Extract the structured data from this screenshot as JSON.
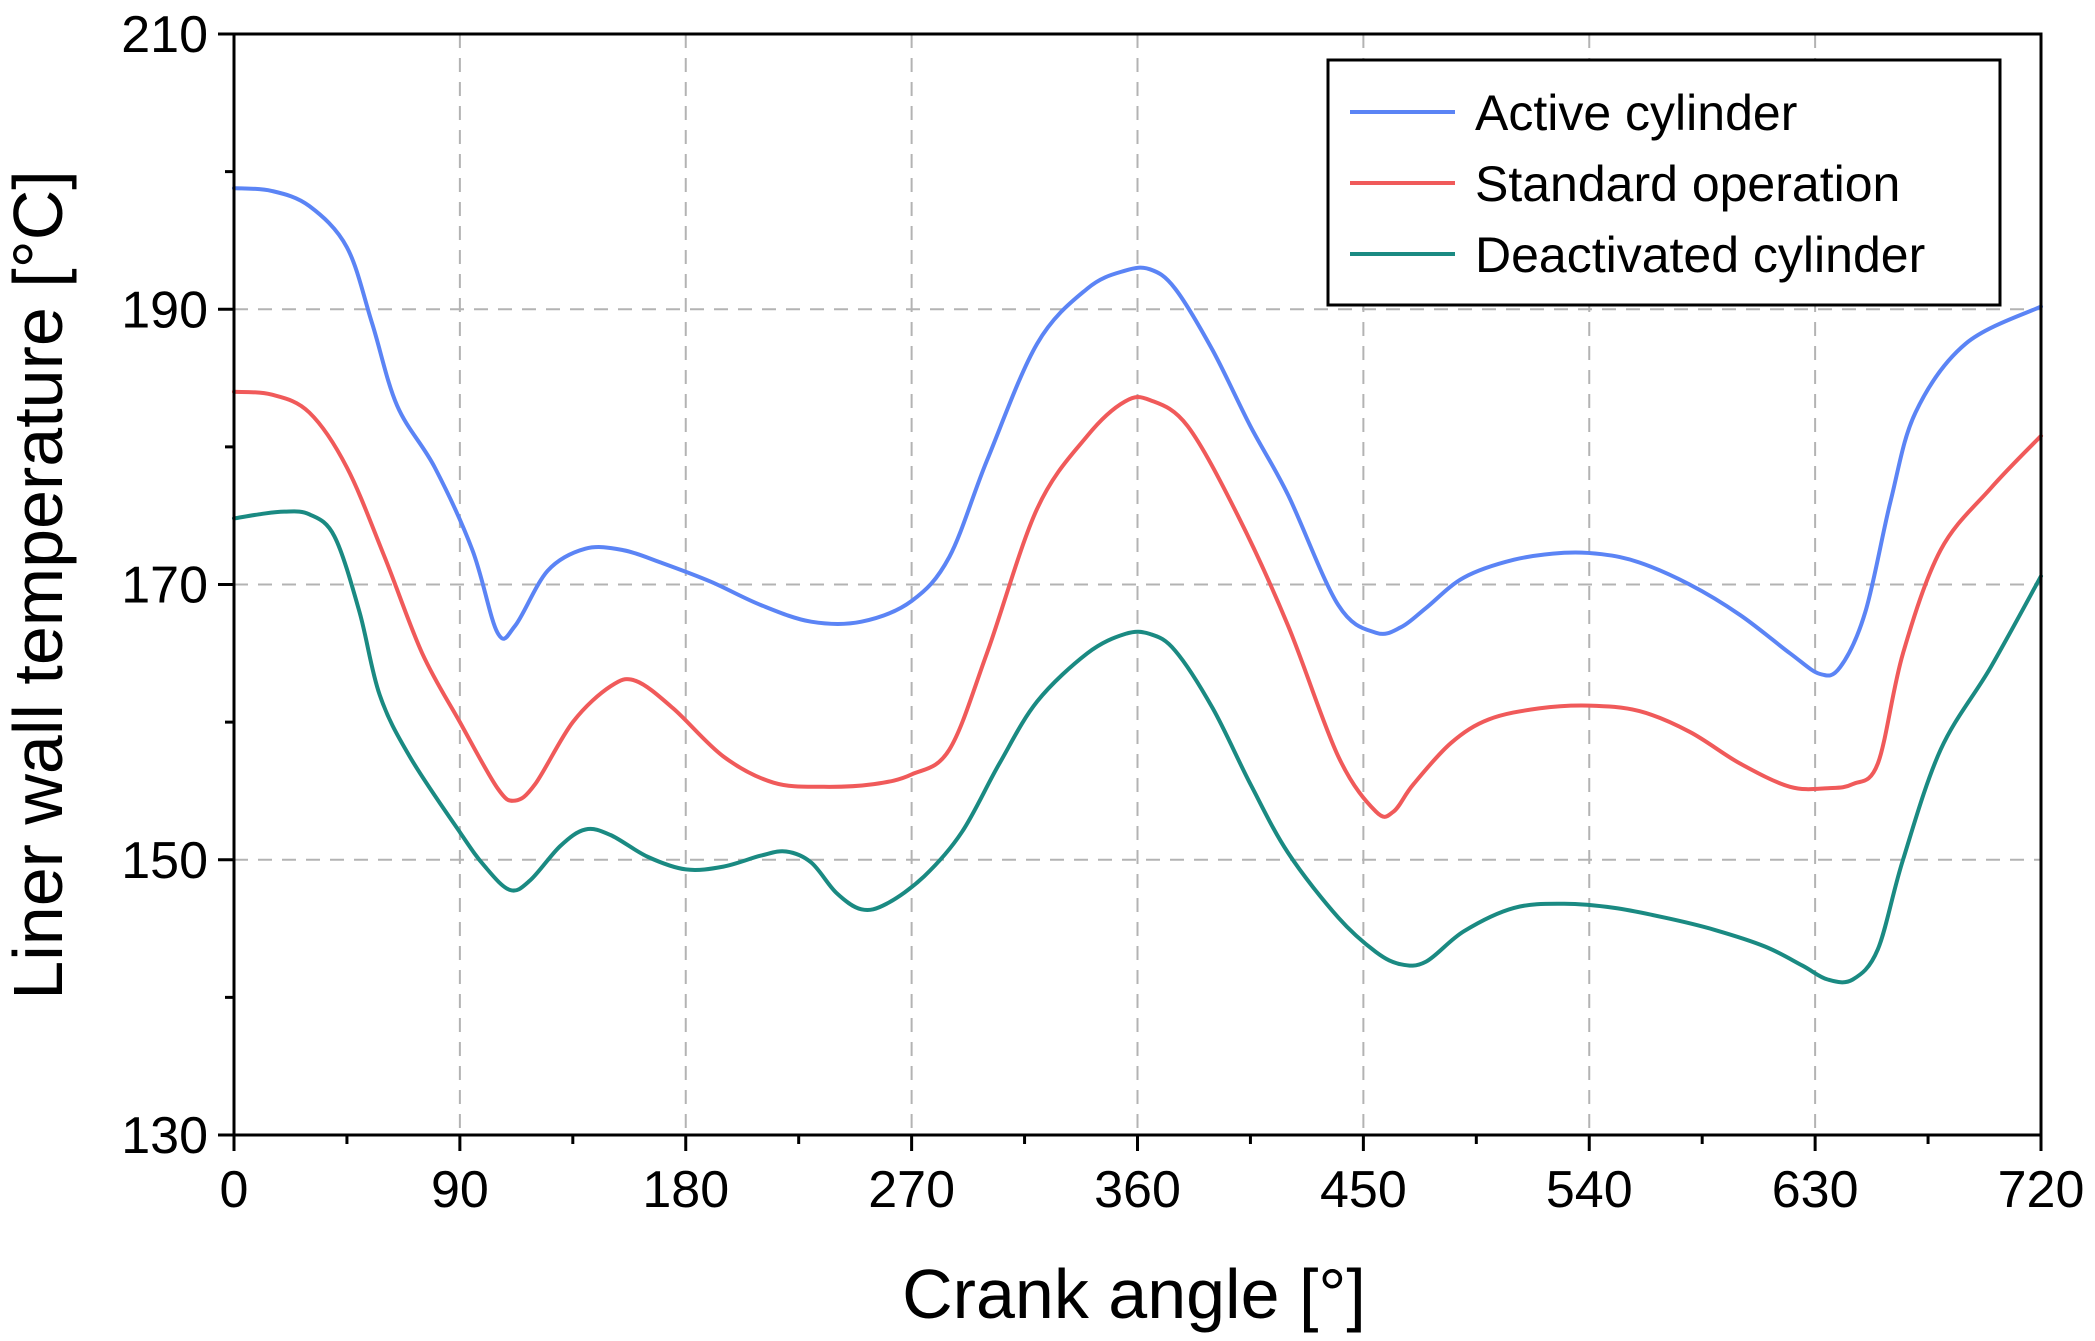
{
  "chart_data": {
    "type": "line",
    "title": "",
    "xlabel": "Crank angle [°]",
    "ylabel": "Liner wall temperature [°C]",
    "xlim": [
      0,
      720
    ],
    "ylim": [
      130,
      210
    ],
    "xticks": [
      0,
      90,
      180,
      270,
      360,
      450,
      540,
      630,
      720
    ],
    "yticks": [
      130,
      150,
      170,
      190,
      210
    ],
    "xtick_labels": [
      "0",
      "90",
      "180",
      "270",
      "360",
      "450",
      "540",
      "630",
      "720"
    ],
    "ytick_labels": [
      "130",
      "150",
      "170",
      "190",
      "210"
    ],
    "grid": true,
    "legend_position": "top-right",
    "series": [
      {
        "name": "Active cylinder",
        "color": "#5b84f5",
        "x": [
          0,
          15,
          30,
          45,
          55,
          65,
          80,
          95,
          105,
          112,
          125,
          140,
          155,
          170,
          190,
          210,
          230,
          250,
          270,
          285,
          300,
          320,
          340,
          355,
          365,
          375,
          390,
          405,
          420,
          440,
          455,
          465,
          475,
          490,
          510,
          530,
          545,
          560,
          580,
          600,
          620,
          632,
          640,
          650,
          660,
          670,
          690,
          720
        ],
        "values": [
          198.8,
          198.6,
          197.5,
          194.5,
          189,
          183,
          178.5,
          172.5,
          166.5,
          167,
          171,
          172.6,
          172.5,
          171.6,
          170.2,
          168.5,
          167.3,
          167.3,
          168.8,
          172,
          179,
          187.5,
          191.5,
          192.8,
          192.9,
          191.5,
          187,
          181.5,
          176.5,
          168.5,
          166.5,
          166.9,
          168.3,
          170.5,
          171.8,
          172.3,
          172.2,
          171.6,
          170,
          167.8,
          165,
          163.5,
          164,
          168,
          176,
          182.5,
          187.5,
          190.2
        ]
      },
      {
        "name": "Standard operation",
        "color": "#f05a5a",
        "x": [
          0,
          15,
          30,
          45,
          60,
          75,
          90,
          105,
          112,
          120,
          135,
          150,
          160,
          175,
          195,
          215,
          235,
          255,
          270,
          285,
          300,
          320,
          340,
          355,
          365,
          380,
          400,
          420,
          440,
          455,
          462,
          470,
          485,
          500,
          520,
          540,
          560,
          580,
          600,
          620,
          635,
          645,
          655,
          665,
          680,
          700,
          720
        ],
        "values": [
          184,
          183.8,
          182.5,
          178.5,
          172,
          165,
          160,
          155.2,
          154.3,
          155.5,
          160,
          162.6,
          163,
          161,
          157.5,
          155.6,
          155.3,
          155.5,
          156.2,
          158,
          165,
          175.5,
          180.8,
          183.3,
          183.4,
          181.5,
          175,
          167,
          157.5,
          153.5,
          153.5,
          155.5,
          158.5,
          160.2,
          161,
          161.2,
          160.8,
          159.3,
          157,
          155.3,
          155.2,
          155.5,
          157,
          165,
          172.5,
          177,
          180.8
        ]
      },
      {
        "name": "Deactivated cylinder",
        "color": "#1a8a82",
        "x": [
          0,
          10,
          20,
          30,
          40,
          50,
          58,
          70,
          90,
          100,
          110,
          118,
          130,
          140,
          150,
          165,
          180,
          195,
          210,
          220,
          230,
          240,
          250,
          260,
          275,
          290,
          305,
          320,
          340,
          355,
          365,
          375,
          390,
          405,
          420,
          440,
          455,
          465,
          475,
          490,
          510,
          530,
          550,
          570,
          590,
          610,
          625,
          635,
          645,
          655,
          665,
          680,
          700,
          720
        ],
        "values": [
          174.8,
          175.1,
          175.3,
          175.1,
          173.5,
          168,
          162,
          157.5,
          152,
          149.5,
          147.8,
          148.5,
          151,
          152.2,
          151.8,
          150.2,
          149.3,
          149.5,
          150.3,
          150.6,
          149.8,
          147.6,
          146.4,
          146.8,
          148.8,
          152,
          157,
          161.5,
          165,
          166.4,
          166.4,
          165.2,
          161,
          155.5,
          150.5,
          145.8,
          143.3,
          142.4,
          142.6,
          144.8,
          146.5,
          146.8,
          146.5,
          145.8,
          144.9,
          143.7,
          142.3,
          141.3,
          141.3,
          143.5,
          150,
          158,
          164,
          170.6
        ]
      }
    ]
  }
}
